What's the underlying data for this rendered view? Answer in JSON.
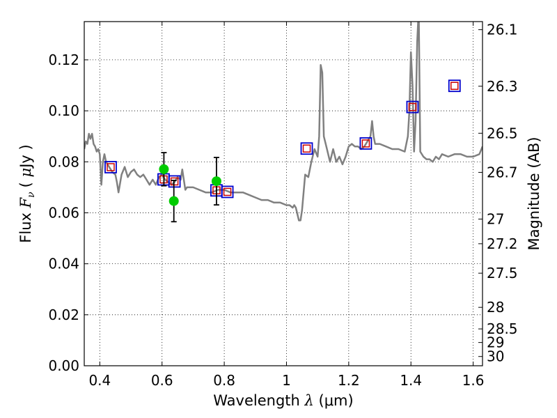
{
  "chart_data": {
    "type": "scatter",
    "xlabel": "Wavelength  λ (μm)",
    "ylabel": "Flux  Fν  ( μJy )",
    "ylabel_parts": {
      "prefix": "Flux ",
      "symbol": "F",
      "subscript": "ν",
      "lparen": "( ",
      "mu": "μ",
      "unit": "Jy )"
    },
    "xlabel_parts": {
      "prefix": "Wavelength  ",
      "symbol": "λ",
      "unit": " (μm)"
    },
    "y2label": "Magnitude (AB)",
    "xlim": [
      0.35,
      1.63
    ],
    "ylim": [
      0.0,
      0.135
    ],
    "grid": true,
    "x_ticks": [
      0.4,
      0.6,
      0.8,
      1.0,
      1.2,
      1.4,
      1.6
    ],
    "x_tick_labels": [
      "0.4",
      "0.6",
      "0.8",
      "1",
      "1.2",
      "1.4",
      "1.6"
    ],
    "y_ticks": [
      0.0,
      0.02,
      0.04,
      0.06,
      0.08,
      0.1,
      0.12
    ],
    "y_tick_labels": [
      "0.00",
      "0.02",
      "0.04",
      "0.06",
      "0.08",
      "0.10",
      "0.12"
    ],
    "y2_ticks": [
      {
        "label": "26.1",
        "value": 26.1
      },
      {
        "label": "26.3",
        "value": 26.3
      },
      {
        "label": "26.5",
        "value": 26.5
      },
      {
        "label": "26.7",
        "value": 26.7
      },
      {
        "label": "27",
        "value": 27.0
      },
      {
        "label": "27.2",
        "value": 27.2
      },
      {
        "label": "27.5",
        "value": 27.5
      },
      {
        "label": "28",
        "value": 28.0
      },
      {
        "label": "28.5",
        "value": 28.5
      },
      {
        "label": "29",
        "value": 29.0
      },
      {
        "label": "30",
        "value": 30.0
      }
    ],
    "series": [
      {
        "kind": "model_spectrum",
        "color": "#808080",
        "x": [
          0.35,
          0.355,
          0.36,
          0.365,
          0.37,
          0.375,
          0.38,
          0.385,
          0.39,
          0.395,
          0.4,
          0.405,
          0.41,
          0.415,
          0.42,
          0.425,
          0.43,
          0.435,
          0.44,
          0.45,
          0.455,
          0.46,
          0.47,
          0.48,
          0.49,
          0.5,
          0.51,
          0.52,
          0.53,
          0.54,
          0.55,
          0.56,
          0.57,
          0.58,
          0.59,
          0.6,
          0.61,
          0.62,
          0.63,
          0.64,
          0.65,
          0.66,
          0.665,
          0.67,
          0.675,
          0.68,
          0.7,
          0.72,
          0.74,
          0.76,
          0.78,
          0.8,
          0.82,
          0.84,
          0.86,
          0.88,
          0.9,
          0.92,
          0.94,
          0.96,
          0.98,
          1.0,
          1.01,
          1.02,
          1.025,
          1.03,
          1.04,
          1.045,
          1.05,
          1.06,
          1.07,
          1.08,
          1.09,
          1.1,
          1.105,
          1.11,
          1.115,
          1.12,
          1.13,
          1.14,
          1.15,
          1.16,
          1.17,
          1.18,
          1.19,
          1.2,
          1.21,
          1.22,
          1.23,
          1.24,
          1.25,
          1.26,
          1.27,
          1.275,
          1.28,
          1.285,
          1.29,
          1.3,
          1.32,
          1.34,
          1.36,
          1.38,
          1.39,
          1.395,
          1.4,
          1.405,
          1.41,
          1.415,
          1.42,
          1.425,
          1.43,
          1.44,
          1.45,
          1.46,
          1.47,
          1.48,
          1.49,
          1.5,
          1.52,
          1.54,
          1.56,
          1.58,
          1.6,
          1.62,
          1.63
        ],
        "y": [
          0.085,
          0.088,
          0.087,
          0.091,
          0.089,
          0.091,
          0.087,
          0.086,
          0.084,
          0.085,
          0.083,
          0.071,
          0.08,
          0.083,
          0.08,
          0.079,
          0.078,
          0.077,
          0.076,
          0.075,
          0.072,
          0.068,
          0.075,
          0.078,
          0.074,
          0.076,
          0.077,
          0.075,
          0.074,
          0.075,
          0.073,
          0.071,
          0.073,
          0.071,
          0.074,
          0.075,
          0.073,
          0.072,
          0.071,
          0.072,
          0.074,
          0.073,
          0.077,
          0.073,
          0.069,
          0.07,
          0.07,
          0.069,
          0.068,
          0.068,
          0.069,
          0.069,
          0.068,
          0.068,
          0.068,
          0.067,
          0.066,
          0.065,
          0.065,
          0.064,
          0.064,
          0.063,
          0.063,
          0.062,
          0.063,
          0.062,
          0.057,
          0.057,
          0.061,
          0.075,
          0.074,
          0.08,
          0.085,
          0.082,
          0.09,
          0.118,
          0.115,
          0.09,
          0.085,
          0.08,
          0.085,
          0.08,
          0.082,
          0.079,
          0.082,
          0.086,
          0.087,
          0.086,
          0.086,
          0.085,
          0.086,
          0.088,
          0.09,
          0.096,
          0.09,
          0.087,
          0.087,
          0.087,
          0.086,
          0.085,
          0.085,
          0.084,
          0.09,
          0.1,
          0.123,
          0.11,
          0.084,
          0.096,
          0.127,
          0.14,
          0.084,
          0.082,
          0.081,
          0.081,
          0.08,
          0.082,
          0.081,
          0.083,
          0.082,
          0.083,
          0.083,
          0.082,
          0.082,
          0.083,
          0.086
        ]
      },
      {
        "kind": "synthetic_photometry",
        "marker": "square",
        "color": "#0000cc",
        "x": [
          0.435,
          0.605,
          0.64,
          0.775,
          0.81,
          1.065,
          1.255,
          1.405,
          1.54
        ],
        "y": [
          0.0779,
          0.0731,
          0.0723,
          0.0688,
          0.0682,
          0.0852,
          0.0872,
          0.1015,
          0.1098
        ]
      },
      {
        "kind": "filter_flux",
        "marker": "small-square",
        "color": "#cc0000",
        "x": [
          0.435,
          0.605,
          0.64,
          0.775,
          0.81,
          1.065,
          1.255,
          1.405,
          1.54
        ],
        "y": [
          0.0779,
          0.0731,
          0.0723,
          0.0688,
          0.0682,
          0.0852,
          0.0872,
          0.1015,
          0.1098
        ]
      },
      {
        "kind": "observed",
        "marker": "circle",
        "color": "#00cc00",
        "x": [
          0.606,
          0.638,
          0.775
        ],
        "y": [
          0.0771,
          0.0646,
          0.0724
        ],
        "yerr": [
          0.0065,
          0.0081,
          0.0093
        ]
      }
    ]
  }
}
